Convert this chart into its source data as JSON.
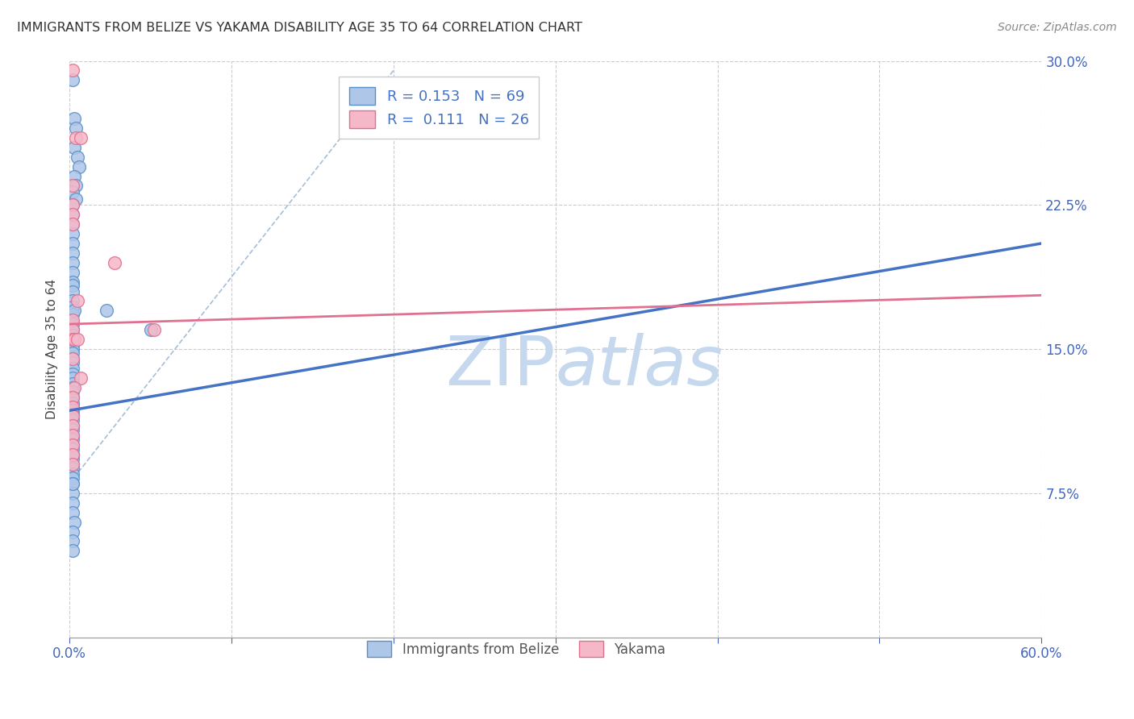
{
  "title": "IMMIGRANTS FROM BELIZE VS YAKAMA DISABILITY AGE 35 TO 64 CORRELATION CHART",
  "source": "Source: ZipAtlas.com",
  "ylabel": "Disability Age 35 to 64",
  "xlim": [
    0,
    0.6
  ],
  "ylim": [
    0,
    0.3
  ],
  "xticks": [
    0.0,
    0.1,
    0.2,
    0.3,
    0.4,
    0.5,
    0.6
  ],
  "xticklabels": [
    "0.0%",
    "",
    "",
    "",
    "",
    "",
    "60.0%"
  ],
  "yticks": [
    0.0,
    0.075,
    0.15,
    0.225,
    0.3
  ],
  "yticklabels": [
    "",
    "7.5%",
    "15.0%",
    "22.5%",
    "30.0%"
  ],
  "belize_R": 0.153,
  "belize_N": 69,
  "yakama_R": 0.111,
  "yakama_N": 26,
  "belize_color": "#aec6e8",
  "yakama_color": "#f5b8c8",
  "belize_edge_color": "#5b8fc9",
  "yakama_edge_color": "#e07090",
  "belize_line_color": "#4472c4",
  "yakama_line_color": "#e07090",
  "background_color": "#ffffff",
  "watermark_color": "#c5d8ed",
  "grid_color": "#cccccc",
  "tick_color": "#4466bb",
  "title_color": "#333333",
  "source_color": "#888888",
  "legend_text_color": "#4472c4",
  "legend_N_color": "#33aa33",
  "belize_x": [
    0.002,
    0.003,
    0.004,
    0.003,
    0.005,
    0.006,
    0.003,
    0.004,
    0.002,
    0.004,
    0.002,
    0.002,
    0.002,
    0.002,
    0.002,
    0.002,
    0.002,
    0.002,
    0.002,
    0.002,
    0.002,
    0.002,
    0.002,
    0.002,
    0.002,
    0.002,
    0.002,
    0.003,
    0.002,
    0.002,
    0.002,
    0.002,
    0.002,
    0.002,
    0.002,
    0.002,
    0.002,
    0.002,
    0.002,
    0.002,
    0.002,
    0.002,
    0.002,
    0.002,
    0.002,
    0.002,
    0.002,
    0.002,
    0.002,
    0.002,
    0.002,
    0.002,
    0.002,
    0.002,
    0.002,
    0.002,
    0.002,
    0.002,
    0.002,
    0.002,
    0.002,
    0.003,
    0.002,
    0.002,
    0.002,
    0.002,
    0.002,
    0.023,
    0.05
  ],
  "belize_y": [
    0.29,
    0.27,
    0.265,
    0.255,
    0.25,
    0.245,
    0.24,
    0.235,
    0.232,
    0.228,
    0.225,
    0.22,
    0.215,
    0.21,
    0.205,
    0.2,
    0.195,
    0.19,
    0.185,
    0.183,
    0.18,
    0.175,
    0.172,
    0.168,
    0.163,
    0.16,
    0.157,
    0.17,
    0.152,
    0.15,
    0.148,
    0.145,
    0.143,
    0.14,
    0.137,
    0.135,
    0.132,
    0.13,
    0.128,
    0.125,
    0.122,
    0.12,
    0.118,
    0.116,
    0.113,
    0.11,
    0.108,
    0.105,
    0.103,
    0.1,
    0.098,
    0.095,
    0.093,
    0.09,
    0.088,
    0.085,
    0.083,
    0.08,
    0.075,
    0.07,
    0.065,
    0.06,
    0.055,
    0.05,
    0.045,
    0.095,
    0.08,
    0.17,
    0.16
  ],
  "yakama_x": [
    0.002,
    0.004,
    0.007,
    0.002,
    0.002,
    0.002,
    0.002,
    0.005,
    0.002,
    0.002,
    0.002,
    0.003,
    0.005,
    0.002,
    0.007,
    0.003,
    0.028,
    0.052,
    0.002,
    0.002,
    0.002,
    0.002,
    0.002,
    0.002,
    0.002,
    0.002
  ],
  "yakama_y": [
    0.295,
    0.26,
    0.26,
    0.235,
    0.225,
    0.22,
    0.215,
    0.175,
    0.165,
    0.16,
    0.155,
    0.155,
    0.155,
    0.145,
    0.135,
    0.13,
    0.195,
    0.16,
    0.125,
    0.12,
    0.115,
    0.11,
    0.105,
    0.1,
    0.095,
    0.09
  ],
  "belize_trend": [
    0.0,
    0.6,
    0.118,
    0.205
  ],
  "yakama_trend": [
    0.0,
    0.6,
    0.163,
    0.178
  ],
  "diag_line": [
    0.0,
    0.2,
    0.08,
    0.295
  ]
}
